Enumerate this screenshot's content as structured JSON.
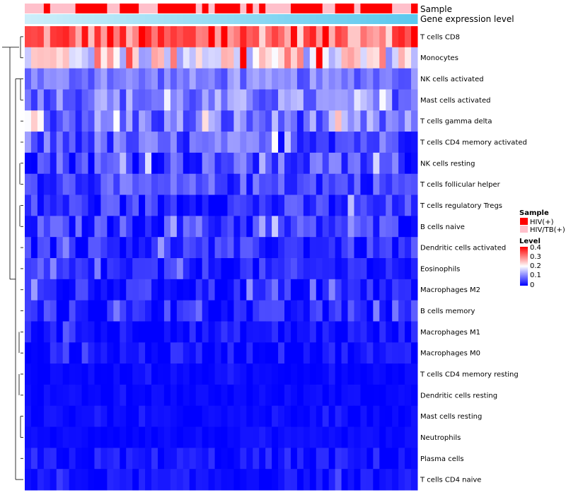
{
  "chart_data": {
    "type": "heatmap",
    "annotation_labels": [
      "Sample",
      "Gene expression level"
    ],
    "rows": [
      "T cells CD8",
      "Monocytes",
      "NK cells activated",
      "Mast cells activated",
      "T cells gamma delta",
      "T cells CD4 memory activated",
      "NK cells resting",
      "T cells follicular helper",
      "T cells regulatory  Tregs",
      "B cells naive",
      "Dendritic cells activated",
      "Eosinophils",
      "Macrophages M2",
      "B cells memory",
      "Macrophages M1",
      "Macrophages M0",
      "T cells CD4 memory resting",
      "Dendritic cells resting",
      "Mast cells resting",
      "Neutrophils",
      "Plasma cells",
      "T cells CD4 naive"
    ],
    "n_columns": 62,
    "sample_annotation": [
      "HIV/TB(+)",
      "HIV/TB(+)",
      "HIV/TB(+)",
      "HIV(+)",
      "HIV/TB(+)",
      "HIV/TB(+)",
      "HIV/TB(+)",
      "HIV/TB(+)",
      "HIV(+)",
      "HIV(+)",
      "HIV(+)",
      "HIV(+)",
      "HIV(+)",
      "HIV/TB(+)",
      "HIV/TB(+)",
      "HIV(+)",
      "HIV(+)",
      "HIV(+)",
      "HIV/TB(+)",
      "HIV/TB(+)",
      "HIV/TB(+)",
      "HIV(+)",
      "HIV(+)",
      "HIV(+)",
      "HIV(+)",
      "HIV(+)",
      "HIV(+)",
      "HIV/TB(+)",
      "HIV(+)",
      "HIV/TB(+)",
      "HIV(+)",
      "HIV(+)",
      "HIV(+)",
      "HIV(+)",
      "HIV/TB(+)",
      "HIV(+)",
      "HIV/TB(+)",
      "HIV(+)",
      "HIV/TB(+)",
      "HIV/TB(+)",
      "HIV/TB(+)",
      "HIV/TB(+)",
      "HIV(+)",
      "HIV(+)",
      "HIV(+)",
      "HIV(+)",
      "HIV(+)",
      "HIV/TB(+)",
      "HIV/TB(+)",
      "HIV(+)",
      "HIV(+)",
      "HIV(+)",
      "HIV/TB(+)",
      "HIV(+)",
      "HIV(+)",
      "HIV(+)",
      "HIV(+)",
      "HIV(+)",
      "HIV/TB(+)",
      "HIV/TB(+)",
      "HIV/TB(+)",
      "HIV(+)"
    ],
    "sample_colors": {
      "HIV(+)": "#ff0000",
      "HIV/TB(+)": "#ffc0cb"
    },
    "expression_gradient": [
      "#cdeefa",
      "#5bc8ee"
    ],
    "color_scale": {
      "min": 0,
      "max": 0.4,
      "colors": [
        "#0000ff",
        "#ffffff",
        "#ff0000"
      ],
      "ticks": [
        0,
        0.1,
        0.2,
        0.3,
        0.4
      ]
    },
    "row_profiles": [
      {
        "base": 0.31,
        "spread": 0.09
      },
      {
        "base": 0.2,
        "spread": 0.11
      },
      {
        "base": 0.09,
        "spread": 0.04
      },
      {
        "base": 0.09,
        "spread": 0.06
      },
      {
        "base": 0.08,
        "spread": 0.07
      },
      {
        "base": 0.06,
        "spread": 0.06
      },
      {
        "base": 0.05,
        "spread": 0.06
      },
      {
        "base": 0.05,
        "spread": 0.05
      },
      {
        "base": 0.03,
        "spread": 0.05
      },
      {
        "base": 0.04,
        "spread": 0.05
      },
      {
        "base": 0.03,
        "spread": 0.04
      },
      {
        "base": 0.02,
        "spread": 0.04
      },
      {
        "base": 0.02,
        "spread": 0.04
      },
      {
        "base": 0.02,
        "spread": 0.04
      },
      {
        "base": 0.01,
        "spread": 0.03
      },
      {
        "base": 0.01,
        "spread": 0.03
      },
      {
        "base": 0.005,
        "spread": 0.01
      },
      {
        "base": 0.005,
        "spread": 0.01
      },
      {
        "base": 0.005,
        "spread": 0.01
      },
      {
        "base": 0.005,
        "spread": 0.01
      },
      {
        "base": 0.01,
        "spread": 0.03
      },
      {
        "base": 0.01,
        "spread": 0.02
      }
    ],
    "dendrogram_merges": [
      [
        2,
        3
      ],
      [
        6,
        7
      ],
      [
        16,
        17
      ],
      [
        18,
        19
      ],
      [
        8,
        9
      ],
      [
        14,
        15
      ],
      [
        0,
        1
      ]
    ]
  },
  "legend": {
    "sample_title": "Sample",
    "sample_items": [
      "HIV(+)",
      "HIV/TB(+)"
    ],
    "level_title": "Level",
    "level_ticks": [
      "0.4",
      "0.3",
      "0.2",
      "0.1",
      "0"
    ]
  }
}
